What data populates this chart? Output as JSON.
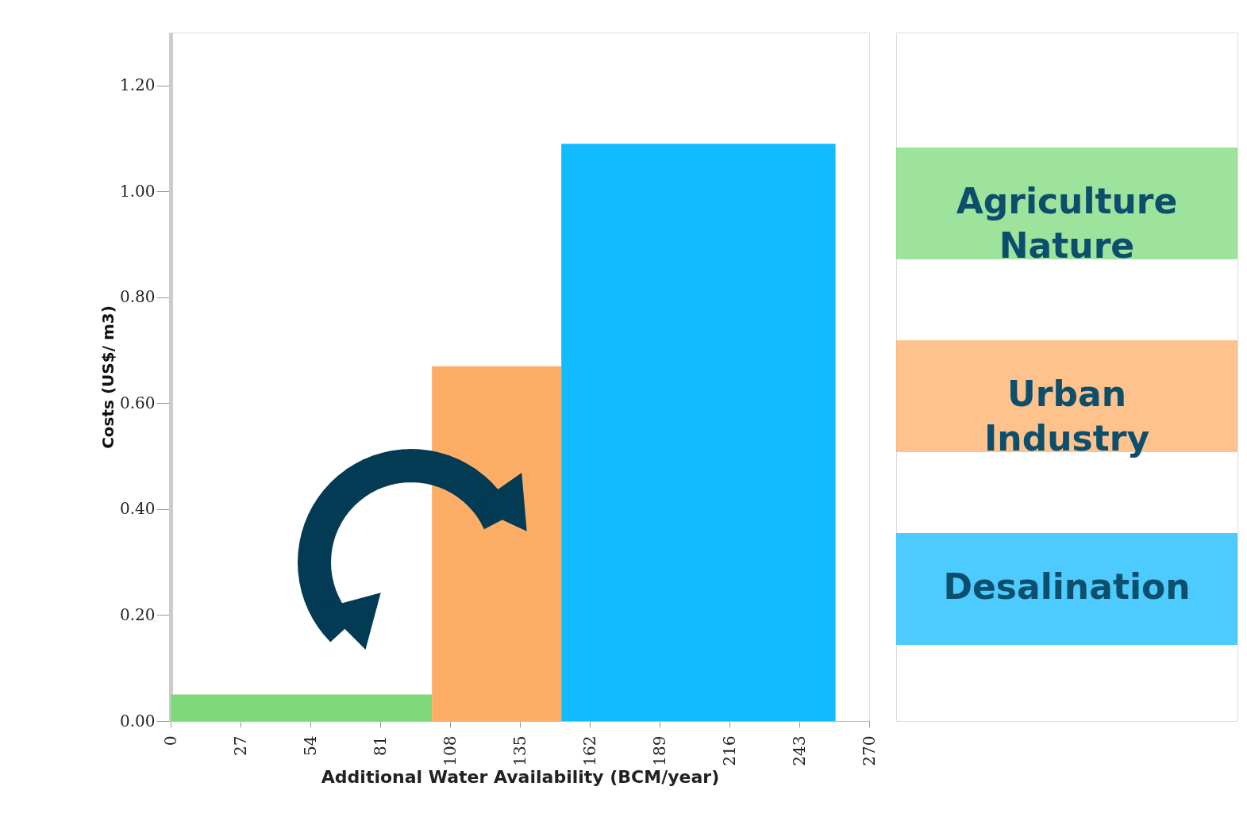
{
  "chart_data": {
    "type": "histogram",
    "xlabel": "Additional Water Availability (BCM/year)",
    "ylabel": "Costs (US$/ m3)",
    "bins": [
      0,
      101,
      151,
      257
    ],
    "values": [
      0.05,
      0.67,
      1.09
    ],
    "colors": [
      "#7ed97b",
      "#fdae66",
      "#12baff"
    ],
    "annotations": [
      "Agriculture Nature",
      "Urban Industry",
      "Desalination"
    ],
    "xlim": [
      0,
      270
    ],
    "xticks": [
      0,
      27,
      54,
      81,
      108,
      135,
      162,
      189,
      216,
      243,
      270
    ],
    "ylim": [
      0,
      1.3
    ],
    "yticks": [
      {
        "value": 0,
        "label": "0.00"
      },
      {
        "value": 0.2,
        "label": "0.20"
      },
      {
        "value": 0.4,
        "label": "0.40"
      },
      {
        "value": 0.6,
        "label": "0.60"
      },
      {
        "value": 0.8,
        "label": "0.80"
      },
      {
        "value": 1.0,
        "label": "1.00"
      },
      {
        "value": 1.2,
        "label": "1.20"
      }
    ],
    "grid": false
  }
}
